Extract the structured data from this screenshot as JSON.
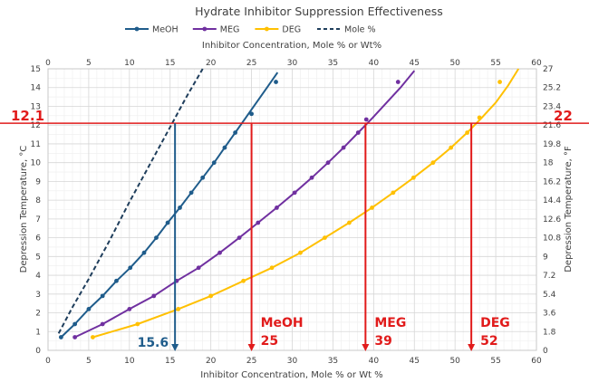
{
  "chart_data": {
    "type": "line",
    "title": "Hydrate Inhibitor Suppression Effectiveness",
    "xlabel_bottom": "Inhibitor Concentration, Mole % or Wt %",
    "xlabel_top": "Inhibitor Concentration, Mole % or Wt%",
    "ylabel_left": "Depression Temperature, °C",
    "ylabel_right": "Depression Temperature, °F",
    "xlim": [
      0,
      60
    ],
    "ylim_left": [
      0,
      15
    ],
    "ylim_right": [
      0,
      27
    ],
    "x_ticks": [
      "0",
      "5",
      "10",
      "15",
      "20",
      "25",
      "30",
      "35",
      "40",
      "45",
      "50",
      "55",
      "60"
    ],
    "y_left_ticks": [
      "0",
      "1",
      "2",
      "3",
      "4",
      "5",
      "6",
      "7",
      "8",
      "9",
      "10",
      "11",
      "12",
      "13",
      "14",
      "15"
    ],
    "y_right_ticks": [
      "0",
      "1.8",
      "3.6",
      "5.4",
      "7.2",
      "9",
      "10.8",
      "12.6",
      "14.4",
      "16.2",
      "18",
      "19.8",
      "21.6",
      "23.4",
      "25.2",
      "27"
    ],
    "grid": true,
    "legend_position": "top",
    "series": [
      {
        "name": "MeOH",
        "color": "#1F5C8B",
        "dash": false,
        "markers": true,
        "points": [
          [
            1.6,
            0.7
          ],
          [
            3.3,
            1.4
          ],
          [
            5.0,
            2.2
          ],
          [
            6.7,
            2.9
          ],
          [
            8.4,
            3.7
          ],
          [
            10.1,
            4.4
          ],
          [
            11.8,
            5.2
          ],
          [
            13.3,
            6.0
          ],
          [
            14.7,
            6.8
          ],
          [
            16.2,
            7.6
          ],
          [
            17.6,
            8.4
          ],
          [
            19.0,
            9.2
          ],
          [
            20.4,
            10.0
          ],
          [
            21.7,
            10.8
          ],
          [
            23.0,
            11.6
          ],
          [
            24.3,
            12.4
          ],
          [
            25.6,
            13.2
          ],
          [
            26.9,
            14.0
          ],
          [
            28.2,
            14.8
          ]
        ],
        "marker_points": [
          [
            1.6,
            0.7
          ],
          [
            3.3,
            1.4
          ],
          [
            5.0,
            2.2
          ],
          [
            6.7,
            2.9
          ],
          [
            8.4,
            3.7
          ],
          [
            10.1,
            4.4
          ],
          [
            11.8,
            5.2
          ],
          [
            13.3,
            6.0
          ],
          [
            14.7,
            6.8
          ],
          [
            16.2,
            7.6
          ],
          [
            17.6,
            8.4
          ],
          [
            19.0,
            9.2
          ],
          [
            20.4,
            10.0
          ],
          [
            21.7,
            10.8
          ],
          [
            23.0,
            11.6
          ],
          [
            25.0,
            12.6
          ],
          [
            28.0,
            14.3
          ]
        ]
      },
      {
        "name": "MEG",
        "color": "#7030A0",
        "dash": false,
        "markers": true,
        "points": [
          [
            3.3,
            0.7
          ],
          [
            6.7,
            1.4
          ],
          [
            10.0,
            2.2
          ],
          [
            13.0,
            2.9
          ],
          [
            15.8,
            3.7
          ],
          [
            18.5,
            4.4
          ],
          [
            21.1,
            5.2
          ],
          [
            23.5,
            6.0
          ],
          [
            25.8,
            6.8
          ],
          [
            28.1,
            7.6
          ],
          [
            30.3,
            8.4
          ],
          [
            32.4,
            9.2
          ],
          [
            34.4,
            10.0
          ],
          [
            36.3,
            10.8
          ],
          [
            38.1,
            11.6
          ],
          [
            39.9,
            12.4
          ],
          [
            41.6,
            13.2
          ],
          [
            43.3,
            14.0
          ],
          [
            45.0,
            14.9
          ]
        ],
        "marker_points": [
          [
            3.3,
            0.7
          ],
          [
            6.7,
            1.4
          ],
          [
            10.0,
            2.2
          ],
          [
            13.0,
            2.9
          ],
          [
            15.8,
            3.7
          ],
          [
            18.5,
            4.4
          ],
          [
            21.1,
            5.2
          ],
          [
            23.5,
            6.0
          ],
          [
            25.8,
            6.8
          ],
          [
            28.1,
            7.6
          ],
          [
            30.3,
            8.4
          ],
          [
            32.4,
            9.2
          ],
          [
            34.4,
            10.0
          ],
          [
            36.3,
            10.8
          ],
          [
            38.1,
            11.6
          ],
          [
            39.1,
            12.3
          ],
          [
            43.0,
            14.3
          ]
        ]
      },
      {
        "name": "DEG",
        "color": "#FFC000",
        "dash": false,
        "markers": true,
        "points": [
          [
            5.5,
            0.7
          ],
          [
            11.0,
            1.4
          ],
          [
            16.0,
            2.2
          ],
          [
            20.0,
            2.9
          ],
          [
            24.0,
            3.7
          ],
          [
            27.5,
            4.4
          ],
          [
            31.0,
            5.2
          ],
          [
            34.0,
            6.0
          ],
          [
            37.0,
            6.8
          ],
          [
            39.8,
            7.6
          ],
          [
            42.4,
            8.4
          ],
          [
            44.9,
            9.2
          ],
          [
            47.3,
            10.0
          ],
          [
            49.5,
            10.8
          ],
          [
            51.5,
            11.6
          ],
          [
            53.3,
            12.4
          ],
          [
            55.0,
            13.2
          ],
          [
            56.5,
            14.1
          ],
          [
            57.8,
            15.0
          ]
        ],
        "marker_points": [
          [
            5.5,
            0.7
          ],
          [
            11.0,
            1.4
          ],
          [
            16.0,
            2.2
          ],
          [
            20.0,
            2.9
          ],
          [
            24.0,
            3.7
          ],
          [
            27.5,
            4.4
          ],
          [
            31.0,
            5.2
          ],
          [
            34.0,
            6.0
          ],
          [
            37.0,
            6.8
          ],
          [
            39.8,
            7.6
          ],
          [
            42.4,
            8.4
          ],
          [
            44.9,
            9.2
          ],
          [
            47.3,
            10.0
          ],
          [
            49.5,
            10.8
          ],
          [
            51.5,
            11.6
          ],
          [
            53.0,
            12.4
          ],
          [
            55.5,
            14.3
          ]
        ]
      },
      {
        "name": "Mole %",
        "color": "#1F3E5C",
        "dash": true,
        "markers": false,
        "points": [
          [
            1.3,
            0.9
          ],
          [
            3.0,
            2.3
          ],
          [
            5.0,
            3.8
          ],
          [
            7.5,
            5.8
          ],
          [
            10.0,
            7.9
          ],
          [
            12.5,
            9.9
          ],
          [
            15.0,
            11.9
          ],
          [
            17.0,
            13.5
          ],
          [
            19.0,
            15.0
          ]
        ],
        "marker_points": []
      }
    ],
    "reference": {
      "target_temp_c": 12.1,
      "target_temp_f": 22,
      "label_c": "12.1",
      "label_f": "22",
      "drops": [
        {
          "x": 15.6,
          "label": "15.6",
          "label2": "",
          "color": "#1F5C8B",
          "label_color": "#1F5C8B"
        },
        {
          "x": 25,
          "label": "MeOH",
          "label2": "25",
          "color": "#E11B1B",
          "label_color": "#E11B1B"
        },
        {
          "x": 39,
          "label": "MEG",
          "label2": "39",
          "color": "#E11B1B",
          "label_color": "#E11B1B"
        },
        {
          "x": 52,
          "label": "DEG",
          "label2": "52",
          "color": "#E11B1B",
          "label_color": "#E11B1B"
        }
      ],
      "line_color": "#E11B1B"
    }
  }
}
